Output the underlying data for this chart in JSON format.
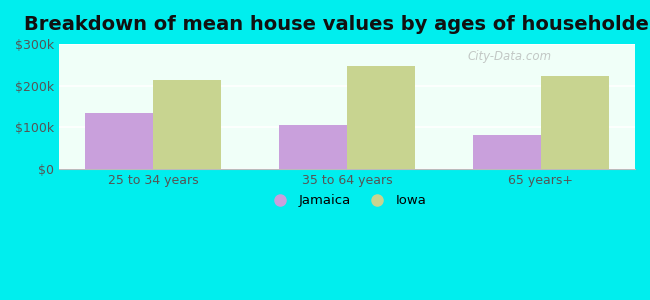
{
  "title": "Breakdown of mean house values by ages of householders",
  "categories": [
    "25 to 34 years",
    "35 to 64 years",
    "65 years+"
  ],
  "jamaica_values": [
    135000,
    107000,
    82000
  ],
  "iowa_values": [
    213000,
    248000,
    222000
  ],
  "jamaica_color": "#c9a0dc",
  "iowa_color": "#c8d490",
  "ylim": [
    0,
    300000
  ],
  "yticks": [
    0,
    100000,
    200000,
    300000
  ],
  "ytick_labels": [
    "$0",
    "$100k",
    "$200k",
    "$300k"
  ],
  "background_color": "#00eeee",
  "plot_bg_color": "#f0fff8",
  "legend_jamaica": "Jamaica",
  "legend_iowa": "Iowa",
  "bar_width": 0.35,
  "title_fontsize": 14,
  "watermark": "City-Data.com"
}
